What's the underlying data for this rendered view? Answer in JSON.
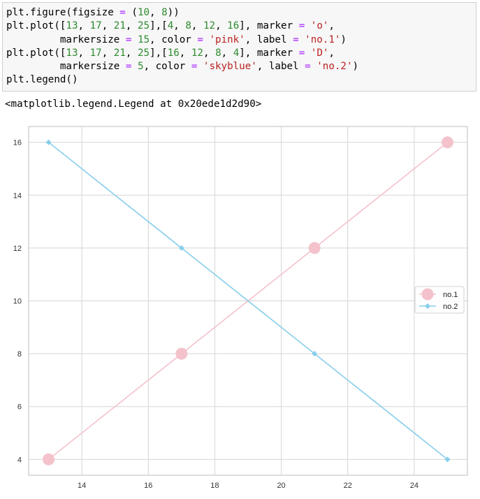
{
  "code_cell": {
    "lines": [
      [
        [
          "plt.figure(figsize ",
          ""
        ],
        [
          "=",
          "op"
        ],
        [
          " (",
          ""
        ],
        [
          "10",
          "num"
        ],
        [
          ", ",
          ""
        ],
        [
          "8",
          "num"
        ],
        [
          "))",
          ""
        ]
      ],
      [
        [
          "plt.plot([",
          ""
        ],
        [
          "13",
          "num"
        ],
        [
          ", ",
          ""
        ],
        [
          "17",
          "num"
        ],
        [
          ", ",
          ""
        ],
        [
          "21",
          "num"
        ],
        [
          ", ",
          ""
        ],
        [
          "25",
          "num"
        ],
        [
          "],[",
          ""
        ],
        [
          "4",
          "num"
        ],
        [
          ", ",
          ""
        ],
        [
          "8",
          "num"
        ],
        [
          ", ",
          ""
        ],
        [
          "12",
          "num"
        ],
        [
          ", ",
          ""
        ],
        [
          "16",
          "num"
        ],
        [
          "], marker ",
          ""
        ],
        [
          "=",
          "op"
        ],
        [
          " ",
          ""
        ],
        [
          "'o'",
          "str"
        ],
        [
          ",",
          ""
        ]
      ],
      [
        [
          "         markersize ",
          ""
        ],
        [
          "=",
          "op"
        ],
        [
          " ",
          ""
        ],
        [
          "15",
          "num"
        ],
        [
          ", color ",
          ""
        ],
        [
          "=",
          "op"
        ],
        [
          " ",
          ""
        ],
        [
          "'pink'",
          "str"
        ],
        [
          ", label ",
          ""
        ],
        [
          "=",
          "op"
        ],
        [
          " ",
          ""
        ],
        [
          "'no.1'",
          "str"
        ],
        [
          ")",
          ""
        ]
      ],
      [
        [
          "plt.plot([",
          ""
        ],
        [
          "13",
          "num"
        ],
        [
          ", ",
          ""
        ],
        [
          "17",
          "num"
        ],
        [
          ", ",
          ""
        ],
        [
          "21",
          "num"
        ],
        [
          ", ",
          ""
        ],
        [
          "25",
          "num"
        ],
        [
          "],[",
          ""
        ],
        [
          "16",
          "num"
        ],
        [
          ", ",
          ""
        ],
        [
          "12",
          "num"
        ],
        [
          ", ",
          ""
        ],
        [
          "8",
          "num"
        ],
        [
          ", ",
          ""
        ],
        [
          "4",
          "num"
        ],
        [
          "], marker ",
          ""
        ],
        [
          "=",
          "op"
        ],
        [
          " ",
          ""
        ],
        [
          "'D'",
          "str"
        ],
        [
          ",",
          ""
        ]
      ],
      [
        [
          "         markersize ",
          ""
        ],
        [
          "=",
          "op"
        ],
        [
          " ",
          ""
        ],
        [
          "5",
          "num"
        ],
        [
          ", color ",
          ""
        ],
        [
          "=",
          "op"
        ],
        [
          " ",
          ""
        ],
        [
          "'skyblue'",
          "str"
        ],
        [
          ", label ",
          ""
        ],
        [
          "=",
          "op"
        ],
        [
          " ",
          ""
        ],
        [
          "'no.2'",
          "str"
        ],
        [
          ")",
          ""
        ]
      ],
      [
        [
          "plt.legend()",
          ""
        ]
      ]
    ]
  },
  "output": {
    "text": "<matplotlib.legend.Legend at 0x20ede1d2d90>"
  },
  "colors": {
    "pink": "#f4c2cb",
    "skyblue": "#87ceeb",
    "grid": "#d5d5d5",
    "axes_edge": "#c8c8c8"
  },
  "chart_data": {
    "type": "line",
    "x_ticks": [
      14,
      16,
      18,
      20,
      22,
      24
    ],
    "y_ticks": [
      4,
      6,
      8,
      10,
      12,
      14,
      16
    ],
    "xlim": [
      12.4,
      25.6
    ],
    "ylim": [
      3.4,
      16.6
    ],
    "grid": true,
    "legend_position": "center-right",
    "series": [
      {
        "name": "no.1",
        "x": [
          13,
          17,
          21,
          25
        ],
        "y": [
          4,
          8,
          12,
          16
        ],
        "color": "pink",
        "marker": "circle"
      },
      {
        "name": "no.2",
        "x": [
          13,
          17,
          21,
          25
        ],
        "y": [
          16,
          12,
          8,
          4
        ],
        "color": "skyblue",
        "marker": "diamond"
      }
    ]
  }
}
